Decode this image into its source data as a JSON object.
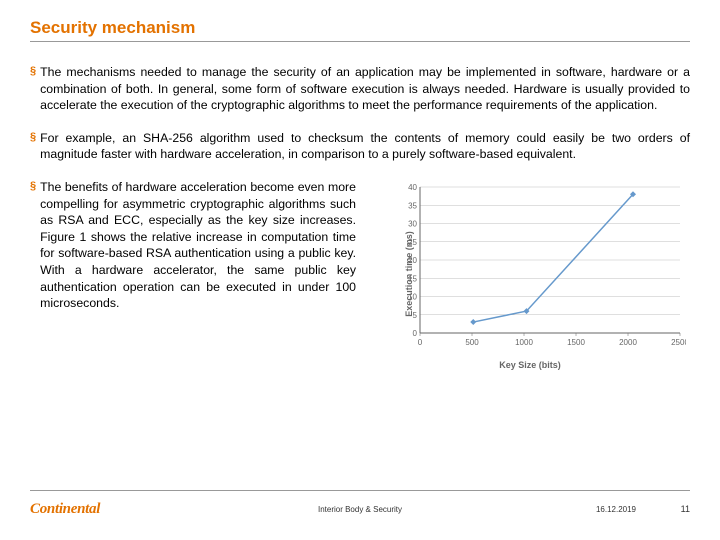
{
  "title": "Security mechanism",
  "bullets": [
    "The mechanisms needed to manage the security of an application may be implemented in software, hardware or a combination of both. In general, some form of software execution is always needed. Hardware is usually provided to accelerate the execution of the cryptographic algorithms to meet the performance requirements of the application.",
    "For example, an SHA-256 algorithm used to checksum the contents of memory could easily be two orders of magnitude faster with hardware acceleration, in comparison to a purely software-based equivalent.",
    "The benefits of hardware acceleration become even more compelling for asymmetric cryptographic algorithms such as RSA and ECC, especially as the key size increases. Figure 1 shows the relative increase in computation time for software-based RSA authentication using a public key. With a hardware accelerator, the same public key authentication operation can be executed in under 100 microseconds."
  ],
  "chart": {
    "type": "line",
    "xlabel": "Key Size (bits)",
    "ylabel": "Execution time (ms)",
    "line_color": "#6699cc",
    "marker_color": "#6699cc",
    "grid_color": "#bfbfbf",
    "axis_color": "#666666",
    "tick_font_size": 8,
    "label_font_size": 9,
    "xlim": [
      0,
      2500
    ],
    "ylim": [
      0,
      40
    ],
    "xticks": [
      0,
      500,
      1000,
      1500,
      2000,
      2500
    ],
    "yticks": [
      0,
      5,
      10,
      15,
      20,
      25,
      30,
      35,
      40
    ],
    "points": [
      {
        "x": 512,
        "y": 3
      },
      {
        "x": 1024,
        "y": 6
      },
      {
        "x": 2048,
        "y": 38
      }
    ],
    "line_width": 1.5,
    "marker_size": 3,
    "marker_style": "diamond"
  },
  "footer": {
    "logo_text": "Continental",
    "center": "Interior Body & Security",
    "date": "16.12.2019",
    "page": "11"
  },
  "colors": {
    "accent": "#e37200",
    "text": "#000000",
    "rule": "#999999"
  }
}
